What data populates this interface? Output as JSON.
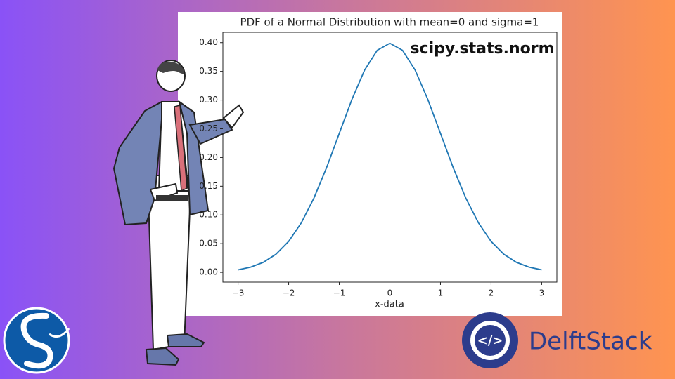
{
  "chart_data": {
    "type": "line",
    "title": "PDF of a Normal Distribution with mean=0 and sigma=1",
    "x_label": "x-data",
    "annotation": "scipy.stats.norm",
    "brand": "DelftStack",
    "x": [
      -3,
      -2.75,
      -2.5,
      -2.25,
      -2,
      -1.75,
      -1.5,
      -1.25,
      -1,
      -0.75,
      -0.5,
      -0.25,
      0,
      0.25,
      0.5,
      0.75,
      1,
      1.25,
      1.5,
      1.75,
      2,
      2.25,
      2.5,
      2.75,
      3
    ],
    "series": [
      {
        "name": "pdf",
        "color": "#1f77b4",
        "values": [
          0.0044,
          0.0091,
          0.0175,
          0.0317,
          0.054,
          0.0863,
          0.1295,
          0.1826,
          0.242,
          0.3011,
          0.3521,
          0.3867,
          0.3989,
          0.3867,
          0.3521,
          0.3011,
          0.242,
          0.1826,
          0.1295,
          0.0863,
          0.054,
          0.0317,
          0.0175,
          0.0091,
          0.0044
        ]
      }
    ],
    "xlim": [
      -3.3,
      3.3
    ],
    "ylim": [
      -0.017,
      0.418
    ],
    "xticks": [
      {
        "value": -3,
        "label": "−3"
      },
      {
        "value": -2,
        "label": "−2"
      },
      {
        "value": -1,
        "label": "−1"
      },
      0,
      1,
      2,
      3
    ],
    "yticks": [
      {
        "value": 0,
        "label": "0.00"
      },
      {
        "value": 0.05,
        "label": "0.05"
      },
      {
        "value": 0.1,
        "label": "0.10"
      },
      {
        "value": 0.15,
        "label": "0.15"
      },
      {
        "value": 0.2,
        "label": "0.20"
      },
      {
        "value": 0.25,
        "label": "0.25"
      },
      {
        "value": 0.3,
        "label": "0.30"
      },
      {
        "value": 0.35,
        "label": "0.35"
      },
      {
        "value": 0.4,
        "label": "0.40"
      }
    ],
    "grid": false
  }
}
